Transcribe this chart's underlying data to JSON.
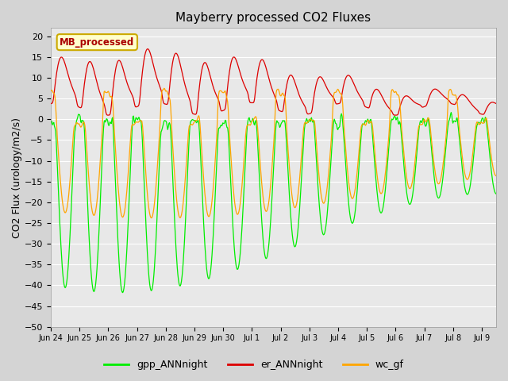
{
  "title": "Mayberry processed CO2 Fluxes",
  "ylabel": "CO2 Flux (urology/m2/s)",
  "ylim": [
    -50,
    22
  ],
  "yticks": [
    -50,
    -45,
    -40,
    -35,
    -30,
    -25,
    -20,
    -15,
    -10,
    -5,
    0,
    5,
    10,
    15,
    20
  ],
  "fig_bg": "#d4d4d4",
  "plot_bg": "#e8e8e8",
  "grid_color": "#ffffff",
  "line_colors": {
    "gpp": "#00ee00",
    "er": "#dd0000",
    "wc": "#ffa500"
  },
  "legend_labels": [
    "gpp_ANNnight",
    "er_ANNnight",
    "wc_gf"
  ],
  "inset_label": "MB_processed",
  "inset_bg": "#ffffcc",
  "inset_border": "#ccaa00",
  "inset_text_color": "#aa0000",
  "n_days": 15.5,
  "tick_labels": [
    "Jun 24",
    "Jun 25",
    "Jun 26",
    "Jun 27",
    "Jun 28",
    "Jun 29",
    "Jun 30",
    "Jul 1",
    "Jul 2",
    "Jul 3",
    "Jul 4",
    "Jul 5",
    "Jul 6",
    "Jul 7",
    "Jul 8",
    "Jul 9"
  ]
}
